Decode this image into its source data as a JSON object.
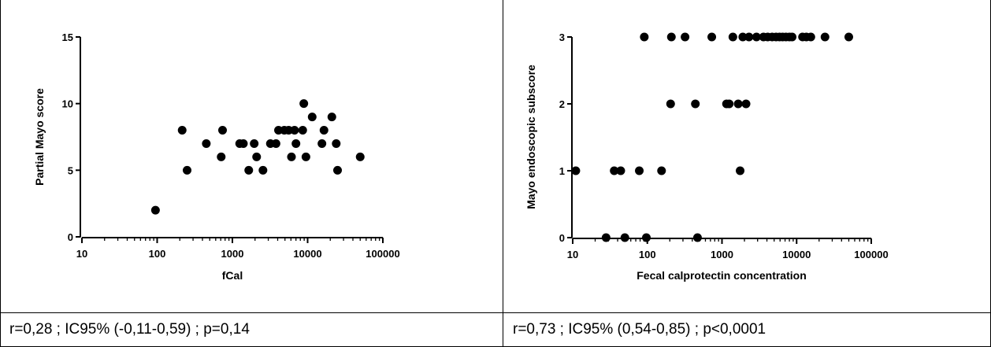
{
  "chart_data": [
    {
      "type": "scatter",
      "xscale": "log",
      "xlim": [
        10,
        100000
      ],
      "ylim": [
        0,
        15
      ],
      "xlabel": "fCal",
      "ylabel": "Partial Mayo score",
      "xticks": [
        "10",
        "100",
        "1000",
        "10000",
        "100000"
      ],
      "yticks": [
        "0",
        "5",
        "10",
        "15"
      ],
      "ytick_values": [
        0,
        5,
        10,
        15
      ],
      "points": [
        {
          "x": 95,
          "y": 2
        },
        {
          "x": 215,
          "y": 8
        },
        {
          "x": 250,
          "y": 5
        },
        {
          "x": 450,
          "y": 7
        },
        {
          "x": 710,
          "y": 6
        },
        {
          "x": 740,
          "y": 8
        },
        {
          "x": 1250,
          "y": 7
        },
        {
          "x": 1400,
          "y": 7
        },
        {
          "x": 1650,
          "y": 5
        },
        {
          "x": 1950,
          "y": 7
        },
        {
          "x": 2100,
          "y": 6
        },
        {
          "x": 2550,
          "y": 5
        },
        {
          "x": 3200,
          "y": 7
        },
        {
          "x": 3800,
          "y": 7
        },
        {
          "x": 4100,
          "y": 8
        },
        {
          "x": 4900,
          "y": 8
        },
        {
          "x": 5600,
          "y": 8
        },
        {
          "x": 6100,
          "y": 6
        },
        {
          "x": 6700,
          "y": 8
        },
        {
          "x": 7000,
          "y": 7
        },
        {
          "x": 8600,
          "y": 8
        },
        {
          "x": 8900,
          "y": 10
        },
        {
          "x": 9500,
          "y": 6
        },
        {
          "x": 11500,
          "y": 9
        },
        {
          "x": 15500,
          "y": 7
        },
        {
          "x": 16500,
          "y": 8
        },
        {
          "x": 21000,
          "y": 9
        },
        {
          "x": 24000,
          "y": 7
        },
        {
          "x": 25000,
          "y": 5
        },
        {
          "x": 50000,
          "y": 6
        }
      ]
    },
    {
      "type": "scatter",
      "xscale": "log",
      "xlim": [
        10,
        100000
      ],
      "ylim": [
        0,
        3
      ],
      "xlabel": "Fecal calprotectin concentration",
      "ylabel": "Mayo endoscopic subscore",
      "xticks": [
        "10",
        "100",
        "1000",
        "10000",
        "100000"
      ],
      "yticks": [
        "0",
        "1",
        "2",
        "3"
      ],
      "ytick_values": [
        0,
        1,
        2,
        3
      ],
      "points": [
        {
          "x": 11,
          "y": 1
        },
        {
          "x": 28,
          "y": 0
        },
        {
          "x": 36,
          "y": 1
        },
        {
          "x": 44,
          "y": 1
        },
        {
          "x": 50,
          "y": 0
        },
        {
          "x": 78,
          "y": 1
        },
        {
          "x": 91,
          "y": 3
        },
        {
          "x": 97,
          "y": 0
        },
        {
          "x": 155,
          "y": 1
        },
        {
          "x": 205,
          "y": 2
        },
        {
          "x": 210,
          "y": 3
        },
        {
          "x": 320,
          "y": 3
        },
        {
          "x": 440,
          "y": 2
        },
        {
          "x": 470,
          "y": 0
        },
        {
          "x": 730,
          "y": 3
        },
        {
          "x": 1150,
          "y": 2
        },
        {
          "x": 1250,
          "y": 2
        },
        {
          "x": 1400,
          "y": 3
        },
        {
          "x": 1650,
          "y": 2
        },
        {
          "x": 1750,
          "y": 1
        },
        {
          "x": 1900,
          "y": 3
        },
        {
          "x": 2100,
          "y": 2
        },
        {
          "x": 2300,
          "y": 3
        },
        {
          "x": 2900,
          "y": 3
        },
        {
          "x": 3600,
          "y": 3
        },
        {
          "x": 4100,
          "y": 3
        },
        {
          "x": 4700,
          "y": 3
        },
        {
          "x": 5300,
          "y": 3
        },
        {
          "x": 5900,
          "y": 3
        },
        {
          "x": 6500,
          "y": 3
        },
        {
          "x": 7200,
          "y": 3
        },
        {
          "x": 8000,
          "y": 3
        },
        {
          "x": 8700,
          "y": 3
        },
        {
          "x": 12000,
          "y": 3
        },
        {
          "x": 13500,
          "y": 3
        },
        {
          "x": 15500,
          "y": 3
        },
        {
          "x": 24000,
          "y": 3
        },
        {
          "x": 50000,
          "y": 3
        }
      ]
    }
  ],
  "captions": {
    "left": "r=0,28 ;  IC95% (-0,11-0,59) ; p=0,14",
    "right": "r=0,73 ; IC95% (0,54-0,85) ; p<0,0001"
  }
}
